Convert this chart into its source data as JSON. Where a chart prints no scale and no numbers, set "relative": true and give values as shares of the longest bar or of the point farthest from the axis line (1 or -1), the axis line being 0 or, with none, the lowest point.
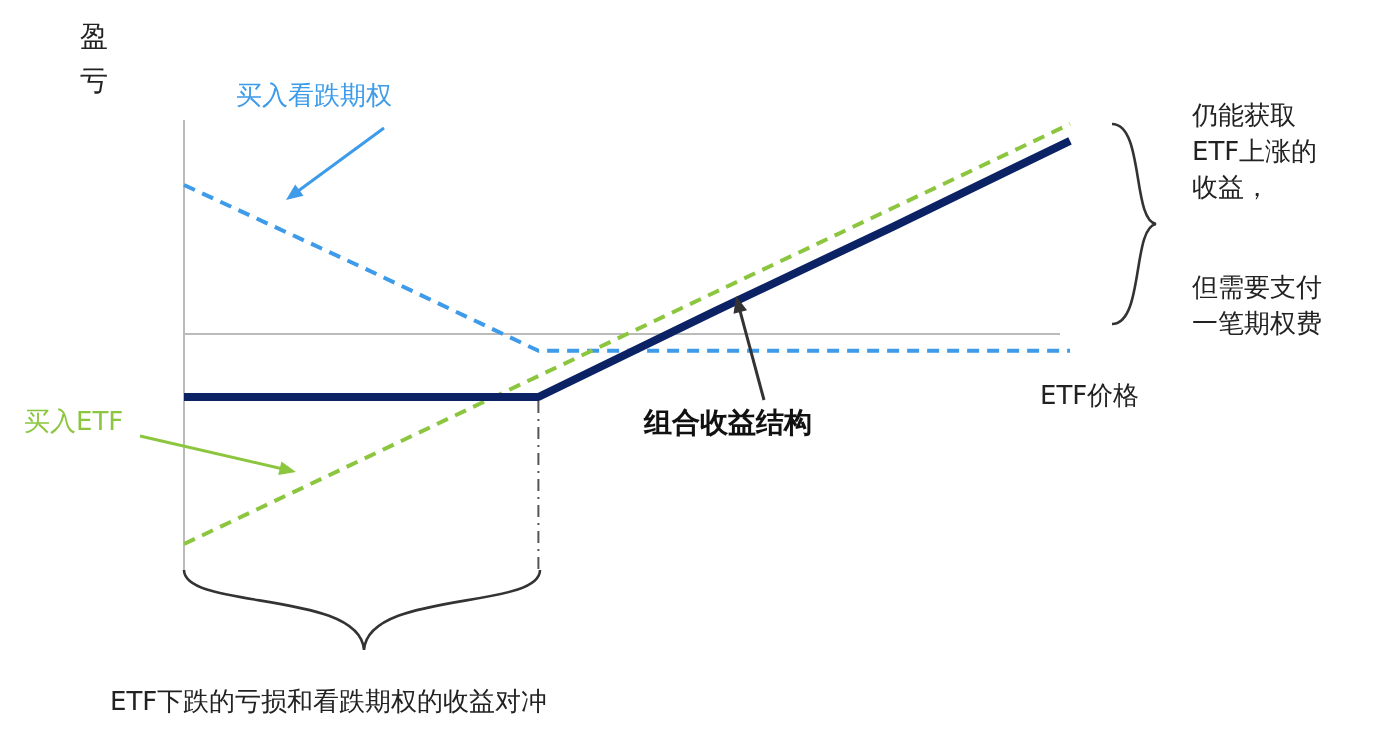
{
  "chart_data": {
    "type": "line",
    "relative": true,
    "xlabel": "ETF价格",
    "ylabel": "盈亏",
    "categories": [
      null,
      null,
      null,
      null,
      null,
      null
    ],
    "series": [
      {
        "name": "买入看跌期权",
        "color": "#3d9be9",
        "line_style": "dashed",
        "values": [
          0.71,
          0.32,
          -0.08,
          -0.08,
          -0.08,
          -0.08
        ]
      },
      {
        "name": "买入ETF",
        "color": "#8cc63f",
        "line_style": "dashed",
        "values": [
          -1,
          -0.6,
          -0.2,
          0.2,
          0.6,
          1
        ]
      },
      {
        "name": "组合收益结构",
        "color": "#0b2265",
        "line_style": "solid",
        "values": [
          -0.3,
          -0.3,
          -0.3,
          0.11,
          0.51,
          0.92
        ]
      }
    ],
    "annotations": [
      "仍能获取ETF上涨的收益，",
      "但需要支付一笔期权费",
      "ETF下跌的亏损和看跌期权的收益对冲"
    ]
  }
}
